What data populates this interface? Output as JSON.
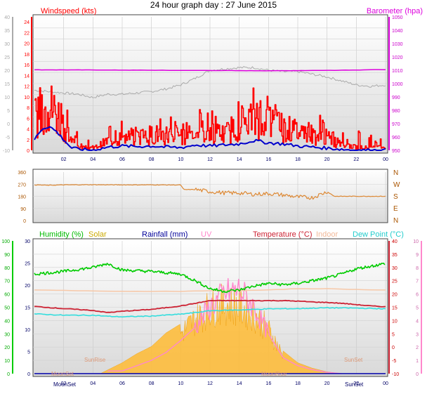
{
  "title": "24 hour graph day : 27 June 2015",
  "colors": {
    "wind": "#ff0000",
    "gust": "#0000cc",
    "barometer": "#dd00dd",
    "outdoor_temp_scale": "#aaaaaa",
    "direction": "#dd8833",
    "humidity": "#00cc00",
    "solar": "#ffbb33",
    "rainfall": "#0000aa",
    "uv": "#ff88cc",
    "temperature": "#cc2233",
    "indoor": "#f7c8a8",
    "dewpoint": "#33dddd"
  },
  "chart_data": [
    {
      "type": "line",
      "name": "wind-barometer",
      "x_ticks": [
        "02",
        "04",
        "06",
        "08",
        "10",
        "12",
        "14",
        "16",
        "18",
        "20",
        "22",
        "00"
      ],
      "left_label": "Windspeed (kts)",
      "right_label": "Barometer (hpa)",
      "left_axis_ticks": [
        "24",
        "22",
        "20",
        "18",
        "16",
        "14",
        "12",
        "10",
        "8",
        "6",
        "4",
        "2",
        "0"
      ],
      "left_ylim": [
        0,
        25
      ],
      "outer_left_ticks": [
        "40",
        "35",
        "30",
        "25",
        "20",
        "15",
        "10",
        "5",
        "0",
        "-5",
        "-10"
      ],
      "outer_left_ylim": [
        -10,
        40
      ],
      "right_axis_ticks": [
        "1050",
        "1040",
        "1030",
        "1020",
        "1010",
        "1000",
        "990",
        "980",
        "970",
        "960",
        "950"
      ],
      "right_ylim": [
        950,
        1050
      ],
      "series": {
        "barometer_hpa": [
          [
            0,
            1010.3
          ],
          [
            4,
            1010.2
          ],
          [
            8,
            1010.0
          ],
          [
            12,
            1009.8
          ],
          [
            16,
            1009.6
          ],
          [
            20,
            1009.9
          ],
          [
            24,
            1010.5
          ]
        ],
        "gray_temp_c": [
          [
            0,
            12.5
          ],
          [
            1,
            12
          ],
          [
            2,
            11.5
          ],
          [
            3,
            11
          ],
          [
            4,
            9.8
          ],
          [
            5,
            11
          ],
          [
            6,
            11
          ],
          [
            7,
            11.5
          ],
          [
            8,
            12
          ],
          [
            9,
            13
          ],
          [
            10,
            14.5
          ],
          [
            11,
            17
          ],
          [
            12,
            20
          ],
          [
            13,
            20.5
          ],
          [
            14,
            21
          ],
          [
            15,
            21
          ],
          [
            16,
            20
          ],
          [
            17,
            19.5
          ],
          [
            18,
            19.5
          ],
          [
            19,
            18.5
          ],
          [
            20,
            17.5
          ],
          [
            21,
            16
          ],
          [
            22,
            14.5
          ],
          [
            23,
            14
          ],
          [
            24,
            14.5
          ]
        ],
        "wind_kts_avg": [
          [
            0,
            5.5
          ],
          [
            0.5,
            6.5
          ],
          [
            1,
            7
          ],
          [
            1.5,
            6
          ],
          [
            2,
            4
          ],
          [
            2.5,
            1.5
          ],
          [
            3,
            0.5
          ],
          [
            4,
            0.3
          ],
          [
            5,
            1.5
          ],
          [
            6,
            2
          ],
          [
            7,
            2
          ],
          [
            8,
            2.5
          ],
          [
            9,
            2.5
          ],
          [
            10,
            2.5
          ],
          [
            11,
            3
          ],
          [
            12,
            3
          ],
          [
            13,
            2.5
          ],
          [
            14,
            4.5
          ],
          [
            15,
            5
          ],
          [
            16,
            4.5
          ],
          [
            17,
            3.5
          ],
          [
            18,
            3
          ],
          [
            19,
            2.5
          ],
          [
            20,
            2
          ],
          [
            21,
            0.8
          ],
          [
            22,
            0.5
          ],
          [
            23,
            0.4
          ],
          [
            24,
            0.5
          ]
        ],
        "gust_kts_avg": [
          [
            0,
            2
          ],
          [
            0.5,
            4
          ],
          [
            1,
            4.5
          ],
          [
            1.5,
            3.5
          ],
          [
            2,
            2
          ],
          [
            2.5,
            0.5
          ],
          [
            3,
            0.2
          ],
          [
            4,
            0
          ],
          [
            5,
            0.6
          ],
          [
            6,
            0.8
          ],
          [
            7,
            0.7
          ],
          [
            8,
            0.8
          ],
          [
            9,
            0.6
          ],
          [
            10,
            0.5
          ],
          [
            11,
            1
          ],
          [
            12,
            0.8
          ],
          [
            13,
            1
          ],
          [
            14,
            1.2
          ],
          [
            15,
            1.8
          ],
          [
            16,
            1.4
          ],
          [
            17,
            1.2
          ],
          [
            18,
            0.8
          ],
          [
            19,
            0.6
          ],
          [
            20,
            0.4
          ],
          [
            21,
            0.2
          ],
          [
            22,
            0
          ],
          [
            23,
            0
          ],
          [
            24,
            0
          ]
        ]
      }
    },
    {
      "type": "line",
      "name": "wind-direction",
      "left_ticks": [
        "360",
        "270",
        "180",
        "90",
        "0"
      ],
      "ylim": [
        0,
        360
      ],
      "right_ticks": [
        "N",
        "W",
        "S",
        "E",
        "N"
      ],
      "series": {
        "direction_deg": [
          [
            0,
            265
          ],
          [
            1,
            262
          ],
          [
            2,
            265
          ],
          [
            4,
            266
          ],
          [
            6,
            265
          ],
          [
            8,
            265
          ],
          [
            10,
            264
          ],
          [
            10.2,
            230
          ],
          [
            11,
            230
          ],
          [
            12,
            215
          ],
          [
            13,
            205
          ],
          [
            14,
            205
          ],
          [
            15,
            195
          ],
          [
            16,
            200
          ],
          [
            17,
            190
          ],
          [
            18,
            175
          ],
          [
            19,
            170
          ],
          [
            20,
            215
          ],
          [
            20.5,
            180
          ],
          [
            24,
            180
          ]
        ]
      }
    },
    {
      "type": "line",
      "name": "humidity-solar-temperature",
      "x_ticks": [
        "02",
        "04",
        "06",
        "08",
        "10",
        "12",
        "14",
        "16",
        "18",
        "20",
        "22",
        "00"
      ],
      "legend": [
        "Humidity (%)",
        "Solar",
        "Rainfall (mm)",
        "UV",
        "Temperature (°C)",
        "Indoor",
        "Dew Point (°C)"
      ],
      "humidity_axis_ticks": [
        "100",
        "90",
        "80",
        "70",
        "60",
        "50",
        "40",
        "30",
        "20",
        "10",
        "0"
      ],
      "humidity_ylim": [
        0,
        100
      ],
      "left_temp_ticks": [
        "30",
        "25",
        "20",
        "15",
        "10",
        "5",
        "0"
      ],
      "temp_ylim_left": [
        0,
        30
      ],
      "right_temp_ticks": [
        "40",
        "35",
        "30",
        "25",
        "20",
        "15",
        "10",
        "5",
        "0",
        "-5",
        "-10"
      ],
      "temp_ylim_right": [
        -10,
        40
      ],
      "uv_ticks": [
        "10",
        "9",
        "8",
        "7",
        "6",
        "5",
        "4",
        "3",
        "2",
        "1",
        "0"
      ],
      "uv_ylim": [
        0,
        10
      ],
      "annotations": {
        "moonset": "MoonSet",
        "sunrise": "SunRise",
        "sunset": "SunSet",
        "moonrise": "MoonRise"
      },
      "series": {
        "humidity_pct": [
          [
            0,
            75
          ],
          [
            2,
            77
          ],
          [
            4,
            80
          ],
          [
            5,
            83
          ],
          [
            6,
            78
          ],
          [
            8,
            77
          ],
          [
            9,
            76
          ],
          [
            10,
            75
          ],
          [
            11,
            70
          ],
          [
            12,
            64
          ],
          [
            13,
            62
          ],
          [
            14,
            63
          ],
          [
            15,
            66
          ],
          [
            16,
            68
          ],
          [
            17,
            67
          ],
          [
            18,
            68
          ],
          [
            19,
            70
          ],
          [
            20,
            72
          ],
          [
            21,
            75
          ],
          [
            22,
            79
          ],
          [
            23,
            81
          ],
          [
            24,
            83
          ]
        ],
        "temperature_c": [
          [
            0,
            15.3
          ],
          [
            2,
            14.5
          ],
          [
            4,
            13.8
          ],
          [
            5,
            13
          ],
          [
            6,
            13.5
          ],
          [
            8,
            14.2
          ],
          [
            10,
            15.5
          ],
          [
            11,
            16.5
          ],
          [
            12,
            17.5
          ],
          [
            13,
            17.5
          ],
          [
            14,
            17.5
          ],
          [
            15,
            17.5
          ],
          [
            16,
            17.5
          ],
          [
            17,
            17.5
          ],
          [
            18,
            17.3
          ],
          [
            19,
            17
          ],
          [
            20,
            16.8
          ],
          [
            21,
            16.5
          ],
          [
            22,
            16
          ],
          [
            23,
            15.5
          ],
          [
            24,
            15.2
          ]
        ],
        "dewpoint_c": [
          [
            0,
            12.5
          ],
          [
            2,
            12
          ],
          [
            4,
            12
          ],
          [
            5,
            11.6
          ],
          [
            6,
            11.4
          ],
          [
            8,
            11.7
          ],
          [
            10,
            12.4
          ],
          [
            11,
            13
          ],
          [
            12,
            13.7
          ],
          [
            14,
            14
          ],
          [
            16,
            14.4
          ],
          [
            18,
            14.5
          ],
          [
            20,
            14.8
          ],
          [
            22,
            14.7
          ],
          [
            24,
            14.4
          ]
        ],
        "indoor_c": [
          [
            0,
            21.5
          ],
          [
            6,
            21
          ],
          [
            10,
            21
          ],
          [
            12,
            21.2
          ],
          [
            14,
            21.3
          ],
          [
            16,
            21.5
          ],
          [
            18,
            22
          ],
          [
            20,
            22
          ],
          [
            22,
            21.7
          ],
          [
            24,
            21.5
          ]
        ],
        "solar_rel": [
          [
            4.5,
            0
          ],
          [
            5,
            0.04
          ],
          [
            5.5,
            0.08
          ],
          [
            6,
            0.12
          ],
          [
            7,
            0.22
          ],
          [
            8,
            0.3
          ],
          [
            9,
            0.45
          ],
          [
            10,
            0.55
          ],
          [
            11,
            0.75
          ],
          [
            12,
            0.9
          ],
          [
            13,
            0.96
          ],
          [
            14,
            0.92
          ],
          [
            15,
            0.82
          ],
          [
            16,
            0.6
          ],
          [
            17,
            0.25
          ],
          [
            18,
            0.12
          ],
          [
            19,
            0.06
          ],
          [
            20,
            0.02
          ],
          [
            21,
            0
          ]
        ],
        "uv_index": [
          [
            6,
            0.2
          ],
          [
            7,
            0.6
          ],
          [
            8,
            1
          ],
          [
            9,
            1.6
          ],
          [
            10,
            2.5
          ],
          [
            11,
            3.5
          ],
          [
            12,
            5
          ],
          [
            13,
            6
          ],
          [
            14,
            6.3
          ],
          [
            15,
            5
          ],
          [
            16,
            3
          ],
          [
            17,
            1.2
          ],
          [
            18,
            0.6
          ],
          [
            19,
            0.3
          ],
          [
            20,
            0.1
          ],
          [
            21,
            0
          ]
        ],
        "rainfall_mm": [
          [
            0,
            0
          ],
          [
            24,
            0
          ]
        ]
      }
    }
  ]
}
